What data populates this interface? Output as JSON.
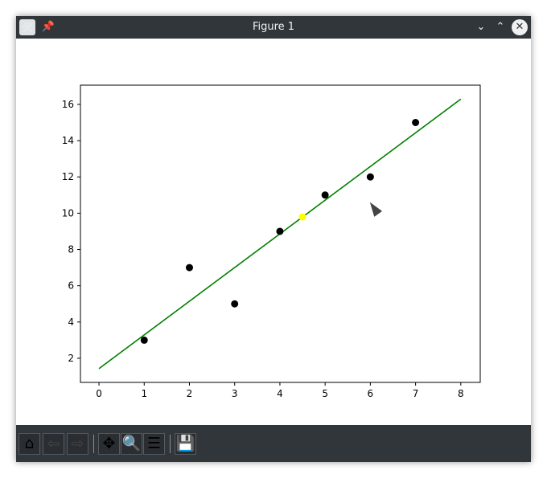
{
  "window": {
    "title": "Figure 1"
  },
  "toolbar": {
    "buttons": [
      {
        "name": "home",
        "icon": "home-icon"
      },
      {
        "name": "back",
        "icon": "arrow-left-icon"
      },
      {
        "name": "forward",
        "icon": "arrow-right-icon"
      },
      {
        "name": "pan",
        "icon": "move-icon"
      },
      {
        "name": "zoom",
        "icon": "magnifier-icon"
      },
      {
        "name": "configure-subplots",
        "icon": "sliders-icon"
      },
      {
        "name": "save",
        "icon": "floppy-disk-icon"
      }
    ]
  },
  "chart_data": {
    "type": "scatter",
    "xlim": [
      -0.41,
      8.43
    ],
    "ylim": [
      0.67,
      17.06
    ],
    "xticks": [
      0,
      1,
      2,
      3,
      4,
      5,
      6,
      7,
      8
    ],
    "yticks": [
      2,
      4,
      6,
      8,
      10,
      12,
      14,
      16
    ],
    "grid": false,
    "points": {
      "x": [
        1,
        2,
        3,
        4,
        5,
        6,
        7
      ],
      "y": [
        3,
        7,
        5,
        9,
        11,
        12,
        15
      ],
      "color": "#000000"
    },
    "fit_line": {
      "x": [
        0,
        8
      ],
      "y": [
        1.43,
        16.29
      ],
      "color": "#008000"
    },
    "highlight_point": {
      "x": 4.5,
      "y": 9.79,
      "color": "#ffff00"
    }
  }
}
